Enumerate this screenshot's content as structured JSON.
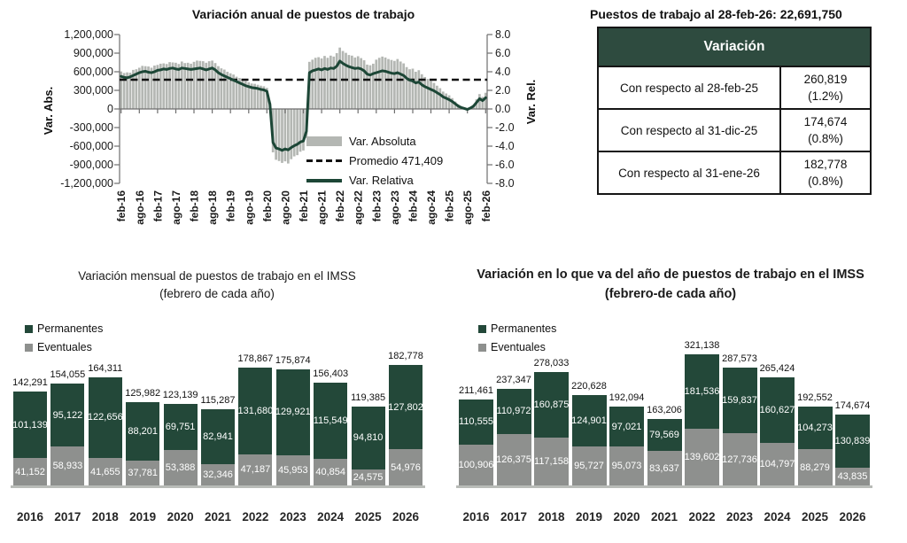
{
  "colors": {
    "dark_green": "#234839",
    "table_header_green": "#2e4b3f",
    "line_green": "#1c4636",
    "bar_gray": "#b4b7b3",
    "stack_gray": "#8e908e",
    "black": "#111111"
  },
  "jobs_summary": {
    "title": "Puestos de trabajo al 28-feb-26: 22,691,750",
    "table": {
      "header": "Variación",
      "rows": [
        {
          "label": "Con respecto al 28-feb-25",
          "value": "260,819",
          "pct": "(1.2%)"
        },
        {
          "label": "Con respecto al 31-dic-25",
          "value": "174,674",
          "pct": "(0.8%)"
        },
        {
          "label": "Con respecto al 31-ene-26",
          "value": "182,778",
          "pct": "(0.8%)"
        }
      ]
    }
  },
  "chart_data": [
    {
      "type": "bar+line",
      "title": "Variación anual de puestos de trabajo",
      "ylabel_left": "Var. Abs.",
      "ylabel_right": "Var. Rel.",
      "ylim_left": [
        -1200000,
        1200000
      ],
      "ylim_right": [
        -8,
        8
      ],
      "y_ticks_left": [
        "1,200,000",
        "900,000",
        "600,000",
        "300,000",
        "0",
        "-300,000",
        "-600,000",
        "-900,000",
        "-1,200,000"
      ],
      "y_ticks_right": [
        "8.0",
        "6.0",
        "4.0",
        "2.0",
        "0.0",
        "-2.0",
        "-4.0",
        "-6.0",
        "-8.0"
      ],
      "x_ticks": [
        "feb-16",
        "ago-16",
        "feb-17",
        "ago-17",
        "feb-18",
        "ago-18",
        "feb-19",
        "ago-19",
        "feb-20",
        "ago-20",
        "feb-21",
        "ago-21",
        "feb-22",
        "ago-22",
        "feb-23",
        "ago-23",
        "feb-24",
        "ago-24",
        "feb-25",
        "ago-25",
        "feb-26"
      ],
      "legend": [
        "Var. Absoluta",
        "Promedio 471,409",
        "Var. Relativa"
      ],
      "grid": false,
      "legend_position": "inside-lower-right",
      "series": [
        {
          "name": "Var. Absoluta",
          "type": "bar",
          "axis": "left",
          "values": [
            605000,
            580000,
            590000,
            585000,
            630000,
            640000,
            665000,
            695000,
            690000,
            685000,
            665000,
            700000,
            710000,
            730000,
            735000,
            725000,
            755000,
            750000,
            745000,
            725000,
            765000,
            740000,
            745000,
            730000,
            760000,
            780000,
            775000,
            770000,
            745000,
            770000,
            780000,
            740000,
            690000,
            655000,
            635000,
            600000,
            575000,
            555000,
            520000,
            500000,
            470000,
            450000,
            430000,
            410000,
            405000,
            390000,
            375000,
            365000,
            340000,
            100000,
            -700000,
            -820000,
            -840000,
            -870000,
            -845000,
            -880000,
            -810000,
            -765000,
            -745000,
            -690000,
            -670000,
            -470000,
            760000,
            795000,
            825000,
            835000,
            815000,
            855000,
            825000,
            860000,
            845000,
            900000,
            990000,
            935000,
            905000,
            870000,
            860000,
            830000,
            850000,
            820000,
            785000,
            715000,
            705000,
            730000,
            795000,
            825000,
            845000,
            830000,
            805000,
            790000,
            775000,
            805000,
            765000,
            735000,
            675000,
            640000,
            650000,
            600000,
            625000,
            560000,
            515000,
            485000,
            450000,
            420000,
            375000,
            335000,
            280000,
            250000,
            220000,
            175000,
            120000,
            75000,
            30000,
            10000,
            -15000,
            20000,
            65000,
            155000,
            240000,
            195000,
            261000
          ]
        },
        {
          "name": "Promedio 471,409",
          "type": "dashed-line",
          "axis": "left",
          "value": 471409
        },
        {
          "name": "Var. Relativa",
          "type": "line",
          "axis": "right",
          "values": [
            3.5,
            3.4,
            3.35,
            3.45,
            3.6,
            3.75,
            3.9,
            4.0,
            4.05,
            3.95,
            3.9,
            4.0,
            4.15,
            4.2,
            4.3,
            4.25,
            4.35,
            4.4,
            4.3,
            4.25,
            4.4,
            4.35,
            4.3,
            4.25,
            4.3,
            4.35,
            4.4,
            4.3,
            4.2,
            4.3,
            4.4,
            4.2,
            3.9,
            3.7,
            3.55,
            3.4,
            3.25,
            3.1,
            2.95,
            2.8,
            2.65,
            2.5,
            2.4,
            2.3,
            2.25,
            2.2,
            2.1,
            2.05,
            1.9,
            0.5,
            -3.6,
            -4.2,
            -4.3,
            -4.45,
            -4.3,
            -4.4,
            -4.15,
            -3.95,
            -3.8,
            -3.55,
            -3.45,
            -2.4,
            3.9,
            4.1,
            4.2,
            4.3,
            4.2,
            4.35,
            4.25,
            4.4,
            4.35,
            4.6,
            5.15,
            4.9,
            4.7,
            4.55,
            4.45,
            4.35,
            4.4,
            4.3,
            4.1,
            3.75,
            3.65,
            3.8,
            3.9,
            4.0,
            4.1,
            4.05,
            3.95,
            3.85,
            3.8,
            3.9,
            3.75,
            3.6,
            3.3,
            3.1,
            3.0,
            2.8,
            2.9,
            2.6,
            2.4,
            2.25,
            2.1,
            1.95,
            1.75,
            1.55,
            1.3,
            1.15,
            1.0,
            0.8,
            0.55,
            0.3,
            0.15,
            0.05,
            -0.05,
            0.1,
            0.3,
            0.7,
            1.1,
            0.9,
            1.2
          ]
        }
      ]
    },
    {
      "type": "stacked-bar",
      "title": "Variación mensual de puestos de trabajo en el IMSS",
      "subtitle": "(febrero de cada año)",
      "categories": [
        "2016",
        "2017",
        "2018",
        "2019",
        "2020",
        "2021",
        "2022",
        "2023",
        "2024",
        "2025",
        "2026"
      ],
      "legend": [
        "Permanentes",
        "Eventuales"
      ],
      "series": [
        {
          "name": "Permanentes",
          "values": [
            101139,
            95122,
            122656,
            88201,
            69751,
            82941,
            131680,
            129921,
            115549,
            94810,
            127802
          ]
        },
        {
          "name": "Eventuales",
          "values": [
            41152,
            58933,
            41655,
            37781,
            53388,
            32346,
            47187,
            45953,
            40854,
            24575,
            54976
          ]
        }
      ],
      "totals": [
        142291,
        154055,
        164311,
        125982,
        123139,
        115287,
        178867,
        175874,
        156403,
        119385,
        182778
      ]
    },
    {
      "type": "stacked-bar",
      "title": "Variación en lo que va del año de puestos de trabajo en el IMSS",
      "subtitle": "(febrero-de cada año)",
      "categories": [
        "2016",
        "2017",
        "2018",
        "2019",
        "2020",
        "2021",
        "2022",
        "2023",
        "2024",
        "2025",
        "2026"
      ],
      "legend": [
        "Permanentes",
        "Eventuales"
      ],
      "series": [
        {
          "name": "Permanentes",
          "values": [
            110555,
            110972,
            160875,
            124901,
            97021,
            79569,
            181536,
            159837,
            160627,
            104273,
            130839
          ]
        },
        {
          "name": "Eventuales",
          "values": [
            100906,
            126375,
            117158,
            95727,
            95073,
            83637,
            139602,
            127736,
            104797,
            88279,
            43835
          ]
        }
      ],
      "totals": [
        211461,
        237347,
        278033,
        220628,
        192094,
        163206,
        321138,
        287573,
        265424,
        192552,
        174674
      ]
    }
  ]
}
